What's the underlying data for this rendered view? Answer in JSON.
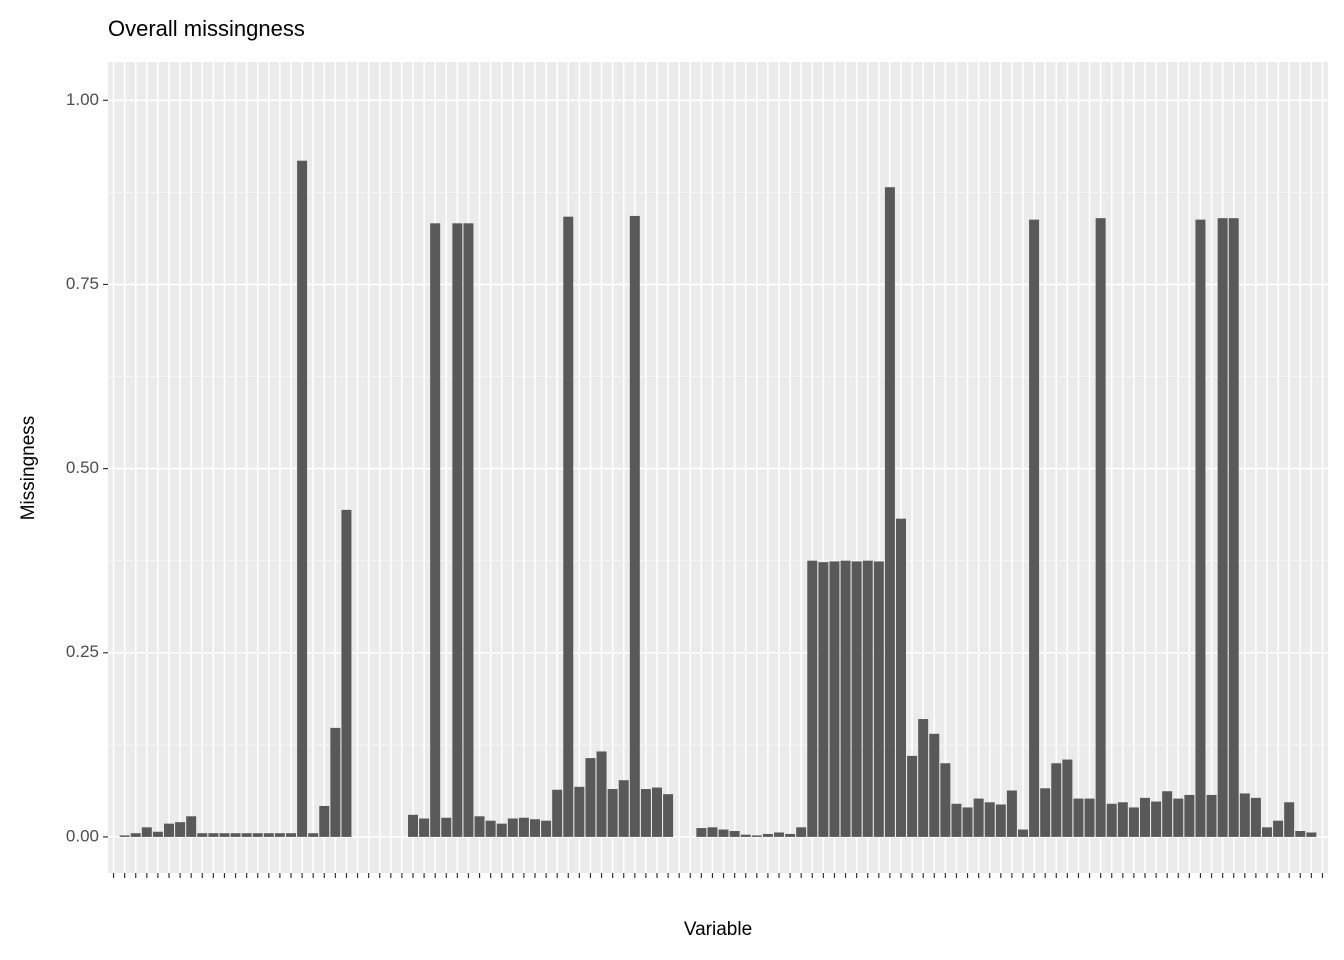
{
  "chart_data": {
    "type": "bar",
    "title": "Overall missingness",
    "x_label": "Variable",
    "y_label": "Missingness",
    "categories": [
      null,
      null,
      null,
      null,
      null,
      null,
      null,
      null,
      null,
      null,
      null,
      null,
      null,
      null,
      null,
      null,
      null,
      null,
      null,
      null,
      null,
      null,
      null,
      null,
      null,
      null,
      null,
      null,
      null,
      null,
      null,
      null,
      null,
      null,
      null,
      null,
      null,
      null,
      null,
      null,
      null,
      null,
      null,
      null,
      null,
      null,
      null,
      null,
      null,
      null,
      null,
      null,
      null,
      null,
      null,
      null,
      null,
      null,
      null,
      null,
      null,
      null,
      null,
      null,
      null,
      null,
      null,
      null,
      null,
      null,
      null,
      null,
      null,
      null,
      null,
      null,
      null,
      null,
      null,
      null,
      null,
      null,
      null,
      null,
      null,
      null,
      null,
      null,
      null,
      null,
      null,
      null,
      null,
      null,
      null,
      null,
      null,
      null,
      null,
      null,
      null,
      null,
      null,
      null,
      null,
      null,
      null,
      null,
      null,
      null
    ],
    "values": [
      0,
      0.002,
      0.005,
      0.013,
      0.007,
      0.018,
      0.02,
      0.028,
      0.005,
      0.005,
      0.005,
      0.005,
      0.005,
      0.005,
      0.005,
      0.005,
      0.005,
      0.918,
      0.005,
      0.042,
      0.148,
      0.444,
      0,
      0,
      0,
      0,
      0,
      0.03,
      0.025,
      0.833,
      0.026,
      0.833,
      0.833,
      0.028,
      0.022,
      0.018,
      0.025,
      0.026,
      0.024,
      0.022,
      0.064,
      0.842,
      0.068,
      0.107,
      0.116,
      0.065,
      0.077,
      0.843,
      0.065,
      0.067,
      0.058,
      0,
      0,
      0.012,
      0.013,
      0.01,
      0.008,
      0.003,
      0.002,
      0.004,
      0.006,
      0.004,
      0.013,
      0.375,
      0.373,
      0.374,
      0.375,
      0.374,
      0.375,
      0.374,
      0.882,
      0.432,
      0.11,
      0.16,
      0.14,
      0.1,
      0.045,
      0.04,
      0.052,
      0.047,
      0.044,
      0.063,
      0.01,
      0.838,
      0.066,
      0.1,
      0.105,
      0.052,
      0.052,
      0.84,
      0.045,
      0.047,
      0.04,
      0.053,
      0.048,
      0.062,
      0.052,
      0.057,
      0.838,
      0.057,
      0.84,
      0.84,
      0.059,
      0.053,
      0.013,
      0.022,
      0.047,
      0.008,
      0.006,
      0
    ],
    "color": "#595959",
    "ylim": [
      -0.049,
      1.052
    ],
    "yticks": [
      {
        "value": 0,
        "label": "0.00"
      },
      {
        "value": 0.25,
        "label": "0.25"
      },
      {
        "value": 0.5,
        "label": "0.50"
      },
      {
        "value": 0.75,
        "label": "0.75"
      },
      {
        "value": 1,
        "label": "1.00"
      }
    ],
    "grid": true
  }
}
